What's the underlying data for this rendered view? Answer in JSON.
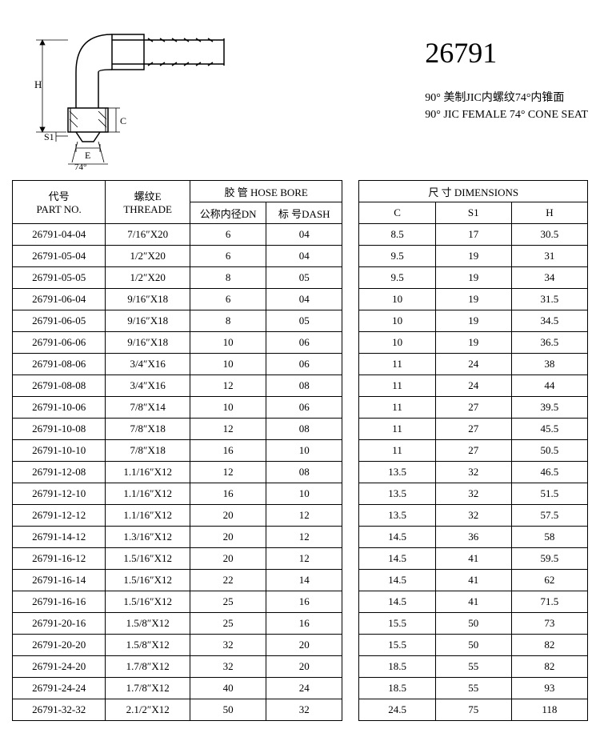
{
  "header": {
    "part_number": "26791",
    "desc_cn": "90° 美制JIC内螺纹74°内锥面",
    "desc_en": "90° JIC FEMALE 74° CONE SEAT"
  },
  "diagram": {
    "label_H": "H",
    "label_S1": "S1",
    "label_E": "E",
    "label_C": "C",
    "label_angle": "74°"
  },
  "table": {
    "headers": {
      "part_no_cn": "代号",
      "part_no_en": "PART NO.",
      "thread_cn": "螺纹E",
      "thread_en": "THREADE",
      "hose_group_cn": "胶 管",
      "hose_group_en": "HOSE BORE",
      "dn_cn": "公称内径DN",
      "dash_cn": "标 号DASH",
      "dim_group_cn": "尺 寸",
      "dim_group_en": "DIMENSIONS",
      "c": "C",
      "s1": "S1",
      "h": "H"
    },
    "rows": [
      {
        "pn": "26791-04-04",
        "th": "7/16″X20",
        "dn": "6",
        "dash": "04",
        "c": "8.5",
        "s1": "17",
        "h": "30.5"
      },
      {
        "pn": "26791-05-04",
        "th": "1/2″X20",
        "dn": "6",
        "dash": "04",
        "c": "9.5",
        "s1": "19",
        "h": "31"
      },
      {
        "pn": "26791-05-05",
        "th": "1/2″X20",
        "dn": "8",
        "dash": "05",
        "c": "9.5",
        "s1": "19",
        "h": "34"
      },
      {
        "pn": "26791-06-04",
        "th": "9/16″X18",
        "dn": "6",
        "dash": "04",
        "c": "10",
        "s1": "19",
        "h": "31.5"
      },
      {
        "pn": "26791-06-05",
        "th": "9/16″X18",
        "dn": "8",
        "dash": "05",
        "c": "10",
        "s1": "19",
        "h": "34.5"
      },
      {
        "pn": "26791-06-06",
        "th": "9/16″X18",
        "dn": "10",
        "dash": "06",
        "c": "10",
        "s1": "19",
        "h": "36.5"
      },
      {
        "pn": "26791-08-06",
        "th": "3/4″X16",
        "dn": "10",
        "dash": "06",
        "c": "11",
        "s1": "24",
        "h": "38"
      },
      {
        "pn": "26791-08-08",
        "th": "3/4″X16",
        "dn": "12",
        "dash": "08",
        "c": "11",
        "s1": "24",
        "h": "44"
      },
      {
        "pn": "26791-10-06",
        "th": "7/8″X14",
        "dn": "10",
        "dash": "06",
        "c": "11",
        "s1": "27",
        "h": "39.5"
      },
      {
        "pn": "26791-10-08",
        "th": "7/8″X18",
        "dn": "12",
        "dash": "08",
        "c": "11",
        "s1": "27",
        "h": "45.5"
      },
      {
        "pn": "26791-10-10",
        "th": "7/8″X18",
        "dn": "16",
        "dash": "10",
        "c": "11",
        "s1": "27",
        "h": "50.5"
      },
      {
        "pn": "26791-12-08",
        "th": "1.1/16″X12",
        "dn": "12",
        "dash": "08",
        "c": "13.5",
        "s1": "32",
        "h": "46.5"
      },
      {
        "pn": "26791-12-10",
        "th": "1.1/16″X12",
        "dn": "16",
        "dash": "10",
        "c": "13.5",
        "s1": "32",
        "h": "51.5"
      },
      {
        "pn": "26791-12-12",
        "th": "1.1/16″X12",
        "dn": "20",
        "dash": "12",
        "c": "13.5",
        "s1": "32",
        "h": "57.5"
      },
      {
        "pn": "26791-14-12",
        "th": "1.3/16″X12",
        "dn": "20",
        "dash": "12",
        "c": "14.5",
        "s1": "36",
        "h": "58"
      },
      {
        "pn": "26791-16-12",
        "th": "1.5/16″X12",
        "dn": "20",
        "dash": "12",
        "c": "14.5",
        "s1": "41",
        "h": "59.5"
      },
      {
        "pn": "26791-16-14",
        "th": "1.5/16″X12",
        "dn": "22",
        "dash": "14",
        "c": "14.5",
        "s1": "41",
        "h": "62"
      },
      {
        "pn": "26791-16-16",
        "th": "1.5/16″X12",
        "dn": "25",
        "dash": "16",
        "c": "14.5",
        "s1": "41",
        "h": "71.5"
      },
      {
        "pn": "26791-20-16",
        "th": "1.5/8″X12",
        "dn": "25",
        "dash": "16",
        "c": "15.5",
        "s1": "50",
        "h": "73"
      },
      {
        "pn": "26791-20-20",
        "th": "1.5/8″X12",
        "dn": "32",
        "dash": "20",
        "c": "15.5",
        "s1": "50",
        "h": "82"
      },
      {
        "pn": "26791-24-20",
        "th": "1.7/8″X12",
        "dn": "32",
        "dash": "20",
        "c": "18.5",
        "s1": "55",
        "h": "82"
      },
      {
        "pn": "26791-24-24",
        "th": "1.7/8″X12",
        "dn": "40",
        "dash": "24",
        "c": "18.5",
        "s1": "55",
        "h": "93"
      },
      {
        "pn": "26791-32-32",
        "th": "2.1/2″X12",
        "dn": "50",
        "dash": "32",
        "c": "24.5",
        "s1": "75",
        "h": "118"
      }
    ]
  }
}
